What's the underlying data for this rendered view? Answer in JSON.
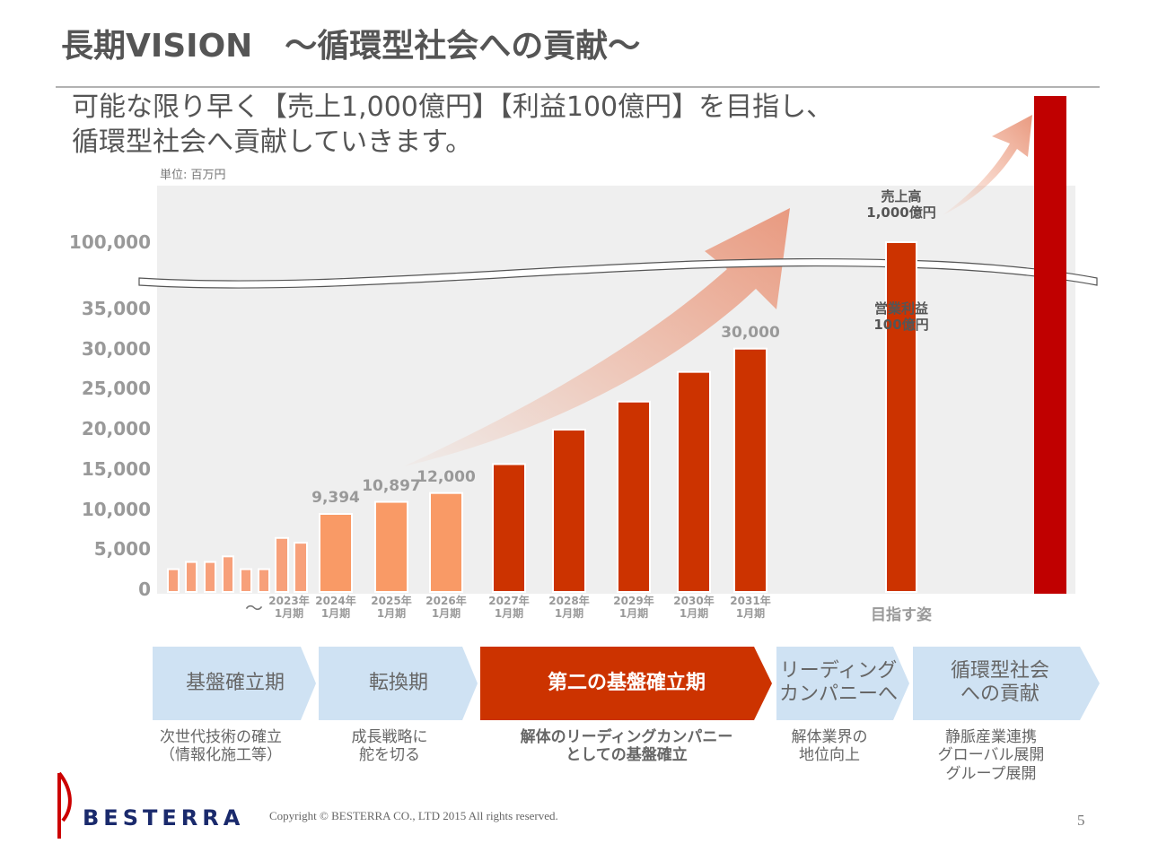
{
  "header": {
    "title": "長期VISION　～循環型社会への貢献～",
    "message": "可能な限り早く【売上1,000億円】【利益100億円】を目指し、\n循環型社会へ貢献していきます。"
  },
  "chart_data": {
    "type": "bar",
    "unit_note": "単位: 百万円",
    "categories": [
      null,
      null,
      null,
      null,
      null,
      null,
      null,
      "2023年\n1月期",
      "2024年\n1月期",
      "2025年\n1月期",
      "2026年\n1月期",
      "2027年\n1月期",
      "2028年\n1月期",
      "2029年\n1月期",
      "2030年\n1月期",
      "2031年\n1月期",
      "目指す姿"
    ],
    "x_note": "～",
    "values": [
      2500,
      3400,
      3400,
      4100,
      2500,
      2500,
      6400,
      5800,
      9394,
      10897,
      12000,
      15600,
      19900,
      23400,
      27100,
      30000,
      100000
    ],
    "value_labels": [
      null,
      null,
      null,
      null,
      null,
      null,
      null,
      null,
      "9,394",
      "10,897",
      "12,000",
      null,
      null,
      null,
      null,
      "30,000",
      "売上高\n1,000億円"
    ],
    "colors": [
      "#f7a07a",
      "#f7a07a",
      "#f7a07a",
      "#f7a07a",
      "#f7a07a",
      "#f7a07a",
      "#f7a07a",
      "#f7a07a",
      "#f99a66",
      "#f99a66",
      "#f99a66",
      "#cc3300",
      "#cc3300",
      "#cc3300",
      "#cc3300",
      "#cc3300",
      "#cc3300"
    ],
    "annotation": "営業利益\n100億円",
    "ylim": [
      0,
      100000
    ],
    "yticks": [
      0,
      {
        "value": 5000,
        "label": "5,000"
      },
      {
        "value": 10000,
        "label": "10,000"
      },
      {
        "value": 15000,
        "label": "15,000"
      },
      {
        "value": 20000,
        "label": "20,000"
      },
      {
        "value": 25000,
        "label": "25,000"
      },
      {
        "value": 30000,
        "label": "30,000"
      },
      {
        "value": 35000,
        "label": "35,000"
      },
      {
        "value": 100000,
        "label": "100,000"
      }
    ],
    "axis_break": true,
    "grid": false
  },
  "phases": [
    {
      "label": "基盤確立期",
      "description": "次世代技術の確立\n（情報化施工等）"
    },
    {
      "label": "転換期",
      "description": "成長戦略に\n舵を切る"
    },
    {
      "label": "第二の基盤確立期",
      "description": "解体のリーディングカンパニー\nとしての基盤確立"
    },
    {
      "label": "リーディング\nカンパニーへ",
      "description": "解体業界の\n地位向上"
    },
    {
      "label": "循環型社会\nへの貢献",
      "description": "静脈産業連携\nグローバル展開\nグループ展開"
    }
  ],
  "footer": {
    "logo": "BESTERRA",
    "copyright": "Copyright © BESTERRA CO., LTD 2015 All rights reserved.",
    "page": "5"
  }
}
